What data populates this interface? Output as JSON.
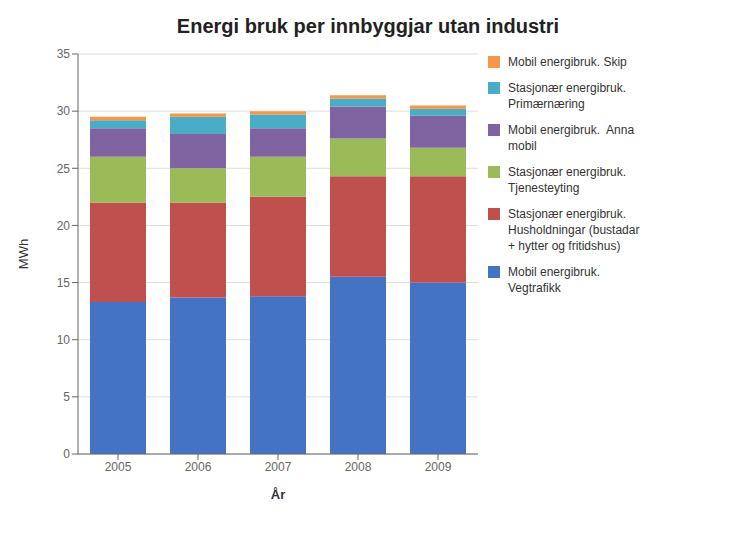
{
  "chart_data": {
    "type": "bar",
    "stacked": true,
    "title": "Energi bruk per innbyggjar utan industri",
    "x_label": "År",
    "y_label": "MWh",
    "categories": [
      "2005",
      "2006",
      "2007",
      "2008",
      "2009"
    ],
    "series": [
      {
        "name": "Mobil energibruk.\nVegtrafikk",
        "color": "#4472C4",
        "values": [
          13.3,
          13.7,
          13.8,
          15.5,
          15.0
        ]
      },
      {
        "name": "Stasjonær energibruk.\nHusholdningar (bustadar\n+ hytter og fritidshus)",
        "color": "#C0504D",
        "values": [
          8.7,
          8.3,
          8.7,
          8.8,
          9.3
        ]
      },
      {
        "name": "Stasjonær energibruk.\nTjenesteyting",
        "color": "#9BBB59",
        "values": [
          4.0,
          3.0,
          3.5,
          3.3,
          2.5
        ]
      },
      {
        "name": "Mobil energibruk.  Anna\nmobil",
        "color": "#8064A2",
        "values": [
          2.5,
          3.0,
          2.5,
          2.8,
          2.8
        ]
      },
      {
        "name": "Stasjonær energibruk.\nPrimærnæring",
        "color": "#4BACC6",
        "values": [
          0.7,
          1.5,
          1.2,
          0.7,
          0.6
        ]
      },
      {
        "name": "Mobil energibruk. Skip",
        "color": "#F79646",
        "values": [
          0.3,
          0.3,
          0.3,
          0.3,
          0.3
        ]
      }
    ],
    "ylim": [
      0,
      35
    ],
    "yticks": [
      0,
      5,
      10,
      15,
      20,
      25,
      30,
      35
    ],
    "grid": true,
    "legend": "right"
  }
}
